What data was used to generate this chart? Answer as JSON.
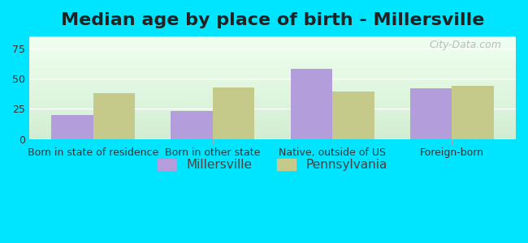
{
  "title": "Median age by place of birth - Millersville",
  "categories": [
    "Born in state of residence",
    "Born in other state",
    "Native, outside of US",
    "Foreign-born"
  ],
  "millersville_values": [
    20,
    23,
    58,
    42
  ],
  "pennsylvania_values": [
    38,
    43,
    39,
    44
  ],
  "millersville_color": "#b39ddb",
  "pennsylvania_color": "#c5c98a",
  "background_outer": "#00e5ff",
  "background_inner_top": "#f0fff0",
  "background_inner_bottom": "#d4edda",
  "ylim": [
    0,
    85
  ],
  "yticks": [
    0,
    25,
    50,
    75
  ],
  "bar_width": 0.35,
  "legend_labels": [
    "Millersville",
    "Pennsylvania"
  ],
  "title_fontsize": 16,
  "axis_label_fontsize": 9,
  "legend_fontsize": 11
}
